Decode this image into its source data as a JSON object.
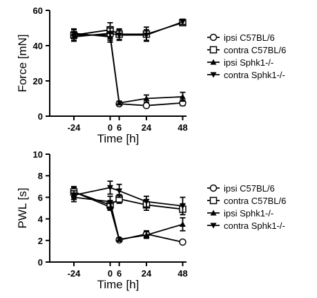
{
  "chart_data": [
    {
      "type": "line",
      "ylabel": "Force [mN]",
      "xlabel": "Time [h]",
      "ylim": [
        0,
        60
      ],
      "yticks": [
        0,
        20,
        40,
        60
      ],
      "xticks": [
        -24,
        0,
        6,
        24,
        48
      ],
      "xlim": [
        -40,
        56
      ],
      "grid": false,
      "legend_position": "right",
      "series": [
        {
          "name": "ipsi C57BL/6",
          "marker": "circle-open",
          "x": [
            -24,
            0,
            6,
            24,
            48
          ],
          "y": [
            46,
            46,
            7,
            6,
            7.5
          ],
          "err": [
            2,
            3,
            1,
            1,
            1.5
          ]
        },
        {
          "name": "contra C57BL/6",
          "marker": "square-open",
          "x": [
            -24,
            0,
            6,
            24,
            48
          ],
          "y": [
            46,
            49,
            46.5,
            46.5,
            53
          ],
          "err": [
            3,
            4,
            3,
            4,
            1.5
          ]
        },
        {
          "name": "ipsi Sphk1-/-",
          "marker": "triangle-up",
          "x": [
            -24,
            0,
            6,
            24,
            48
          ],
          "y": [
            47,
            45,
            7.5,
            10,
            11
          ],
          "err": [
            2.5,
            3,
            1,
            2,
            2.5
          ]
        },
        {
          "name": "contra Sphk1-/-",
          "marker": "triangle-down",
          "x": [
            -24,
            0,
            6,
            24,
            48
          ],
          "y": [
            45,
            47,
            46,
            46,
            53.5
          ],
          "err": [
            2.5,
            3,
            3,
            3,
            1.5
          ]
        }
      ]
    },
    {
      "type": "line",
      "ylabel": "PWL [s]",
      "xlabel": "Time [h]",
      "ylim": [
        0,
        10
      ],
      "yticks": [
        0,
        2,
        4,
        6,
        8,
        10
      ],
      "xticks": [
        -24,
        0,
        6,
        24,
        48
      ],
      "xlim": [
        -40,
        56
      ],
      "grid": false,
      "legend_position": "right",
      "series": [
        {
          "name": "ipsi C57BL/6",
          "marker": "circle-open",
          "x": [
            -24,
            0,
            6,
            24,
            48
          ],
          "y": [
            6.5,
            5.1,
            2.05,
            2.6,
            1.85
          ],
          "err": [
            0.4,
            0.3,
            0.1,
            0.3,
            0.1
          ]
        },
        {
          "name": "contra C57BL/6",
          "marker": "square-open",
          "x": [
            -24,
            0,
            6,
            24,
            48
          ],
          "y": [
            6.5,
            5.3,
            5.85,
            5.3,
            4.9
          ],
          "err": [
            0.5,
            0.4,
            0.4,
            0.5,
            0.5
          ]
        },
        {
          "name": "ipsi Sphk1-/-",
          "marker": "triangle-up",
          "x": [
            -24,
            0,
            6,
            24,
            48
          ],
          "y": [
            6.0,
            5.6,
            2.1,
            2.5,
            3.5
          ],
          "err": [
            0.4,
            0.5,
            0.15,
            0.3,
            0.6
          ]
        },
        {
          "name": "contra Sphk1-/-",
          "marker": "triangle-down",
          "x": [
            -24,
            0,
            6,
            24,
            48
          ],
          "y": [
            6.2,
            6.9,
            6.6,
            5.6,
            5.2
          ],
          "err": [
            0.4,
            0.6,
            0.6,
            0.5,
            0.8
          ]
        }
      ]
    }
  ]
}
